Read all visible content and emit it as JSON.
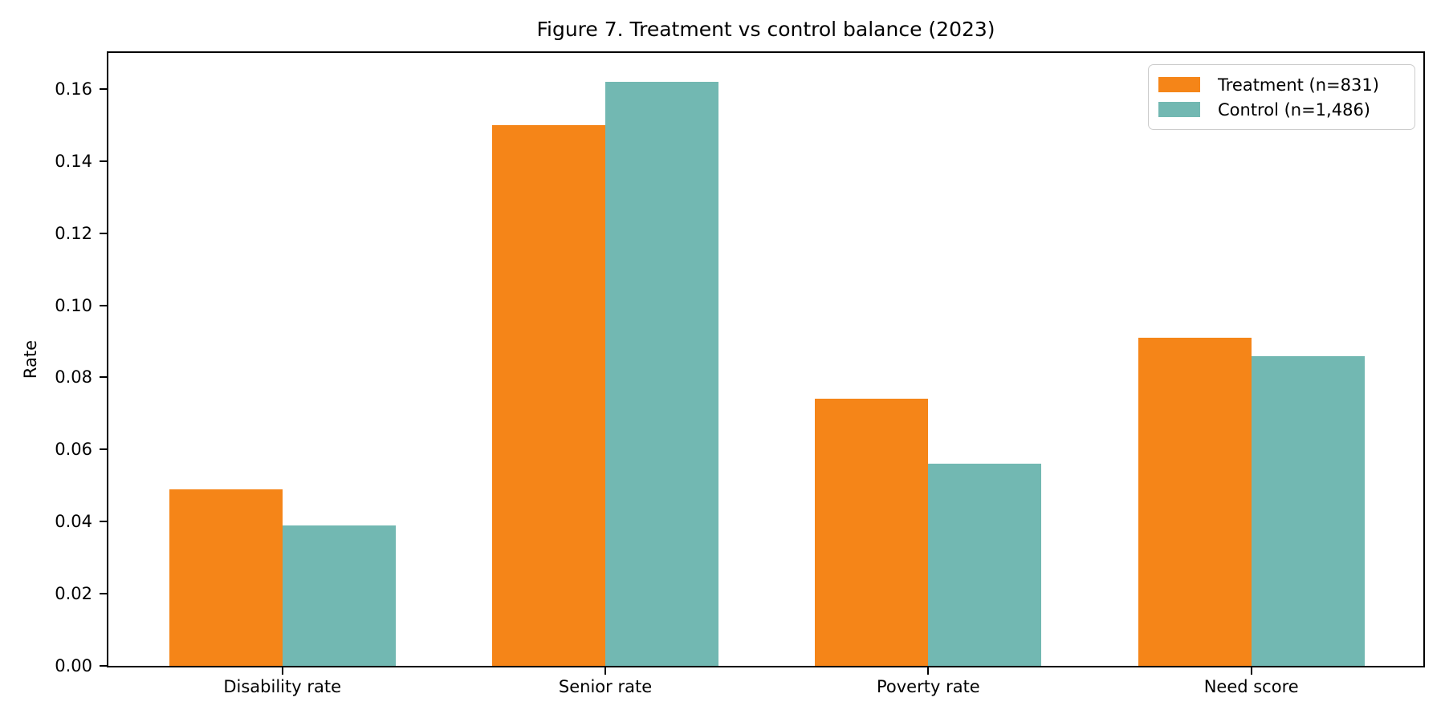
{
  "chart_data": {
    "type": "bar",
    "title": "Figure 7. Treatment vs control balance (2023)",
    "xlabel": "",
    "ylabel": "Rate",
    "categories": [
      "Disability rate",
      "Senior rate",
      "Poverty rate",
      "Need score"
    ],
    "series": [
      {
        "name": "Treatment (n=831)",
        "color": "#f58518",
        "values": [
          0.049,
          0.15,
          0.074,
          0.091
        ]
      },
      {
        "name": "Control (n=1,486)",
        "color": "#72b8b2",
        "values": [
          0.039,
          0.162,
          0.056,
          0.086
        ]
      }
    ],
    "ylim": [
      0,
      0.17
    ],
    "yticks": [
      0.0,
      0.02,
      0.04,
      0.06,
      0.08,
      0.1,
      0.12,
      0.14,
      0.16
    ],
    "ytick_labels": [
      "0.00",
      "0.02",
      "0.04",
      "0.06",
      "0.08",
      "0.10",
      "0.12",
      "0.14",
      "0.16"
    ],
    "grid": false,
    "legend_position": "upper right",
    "bar_group_width_ratio": 0.7,
    "colors": {
      "axis": "#000000",
      "text": "#000000",
      "background": "#ffffff",
      "legend_border": "#cccccc"
    }
  }
}
